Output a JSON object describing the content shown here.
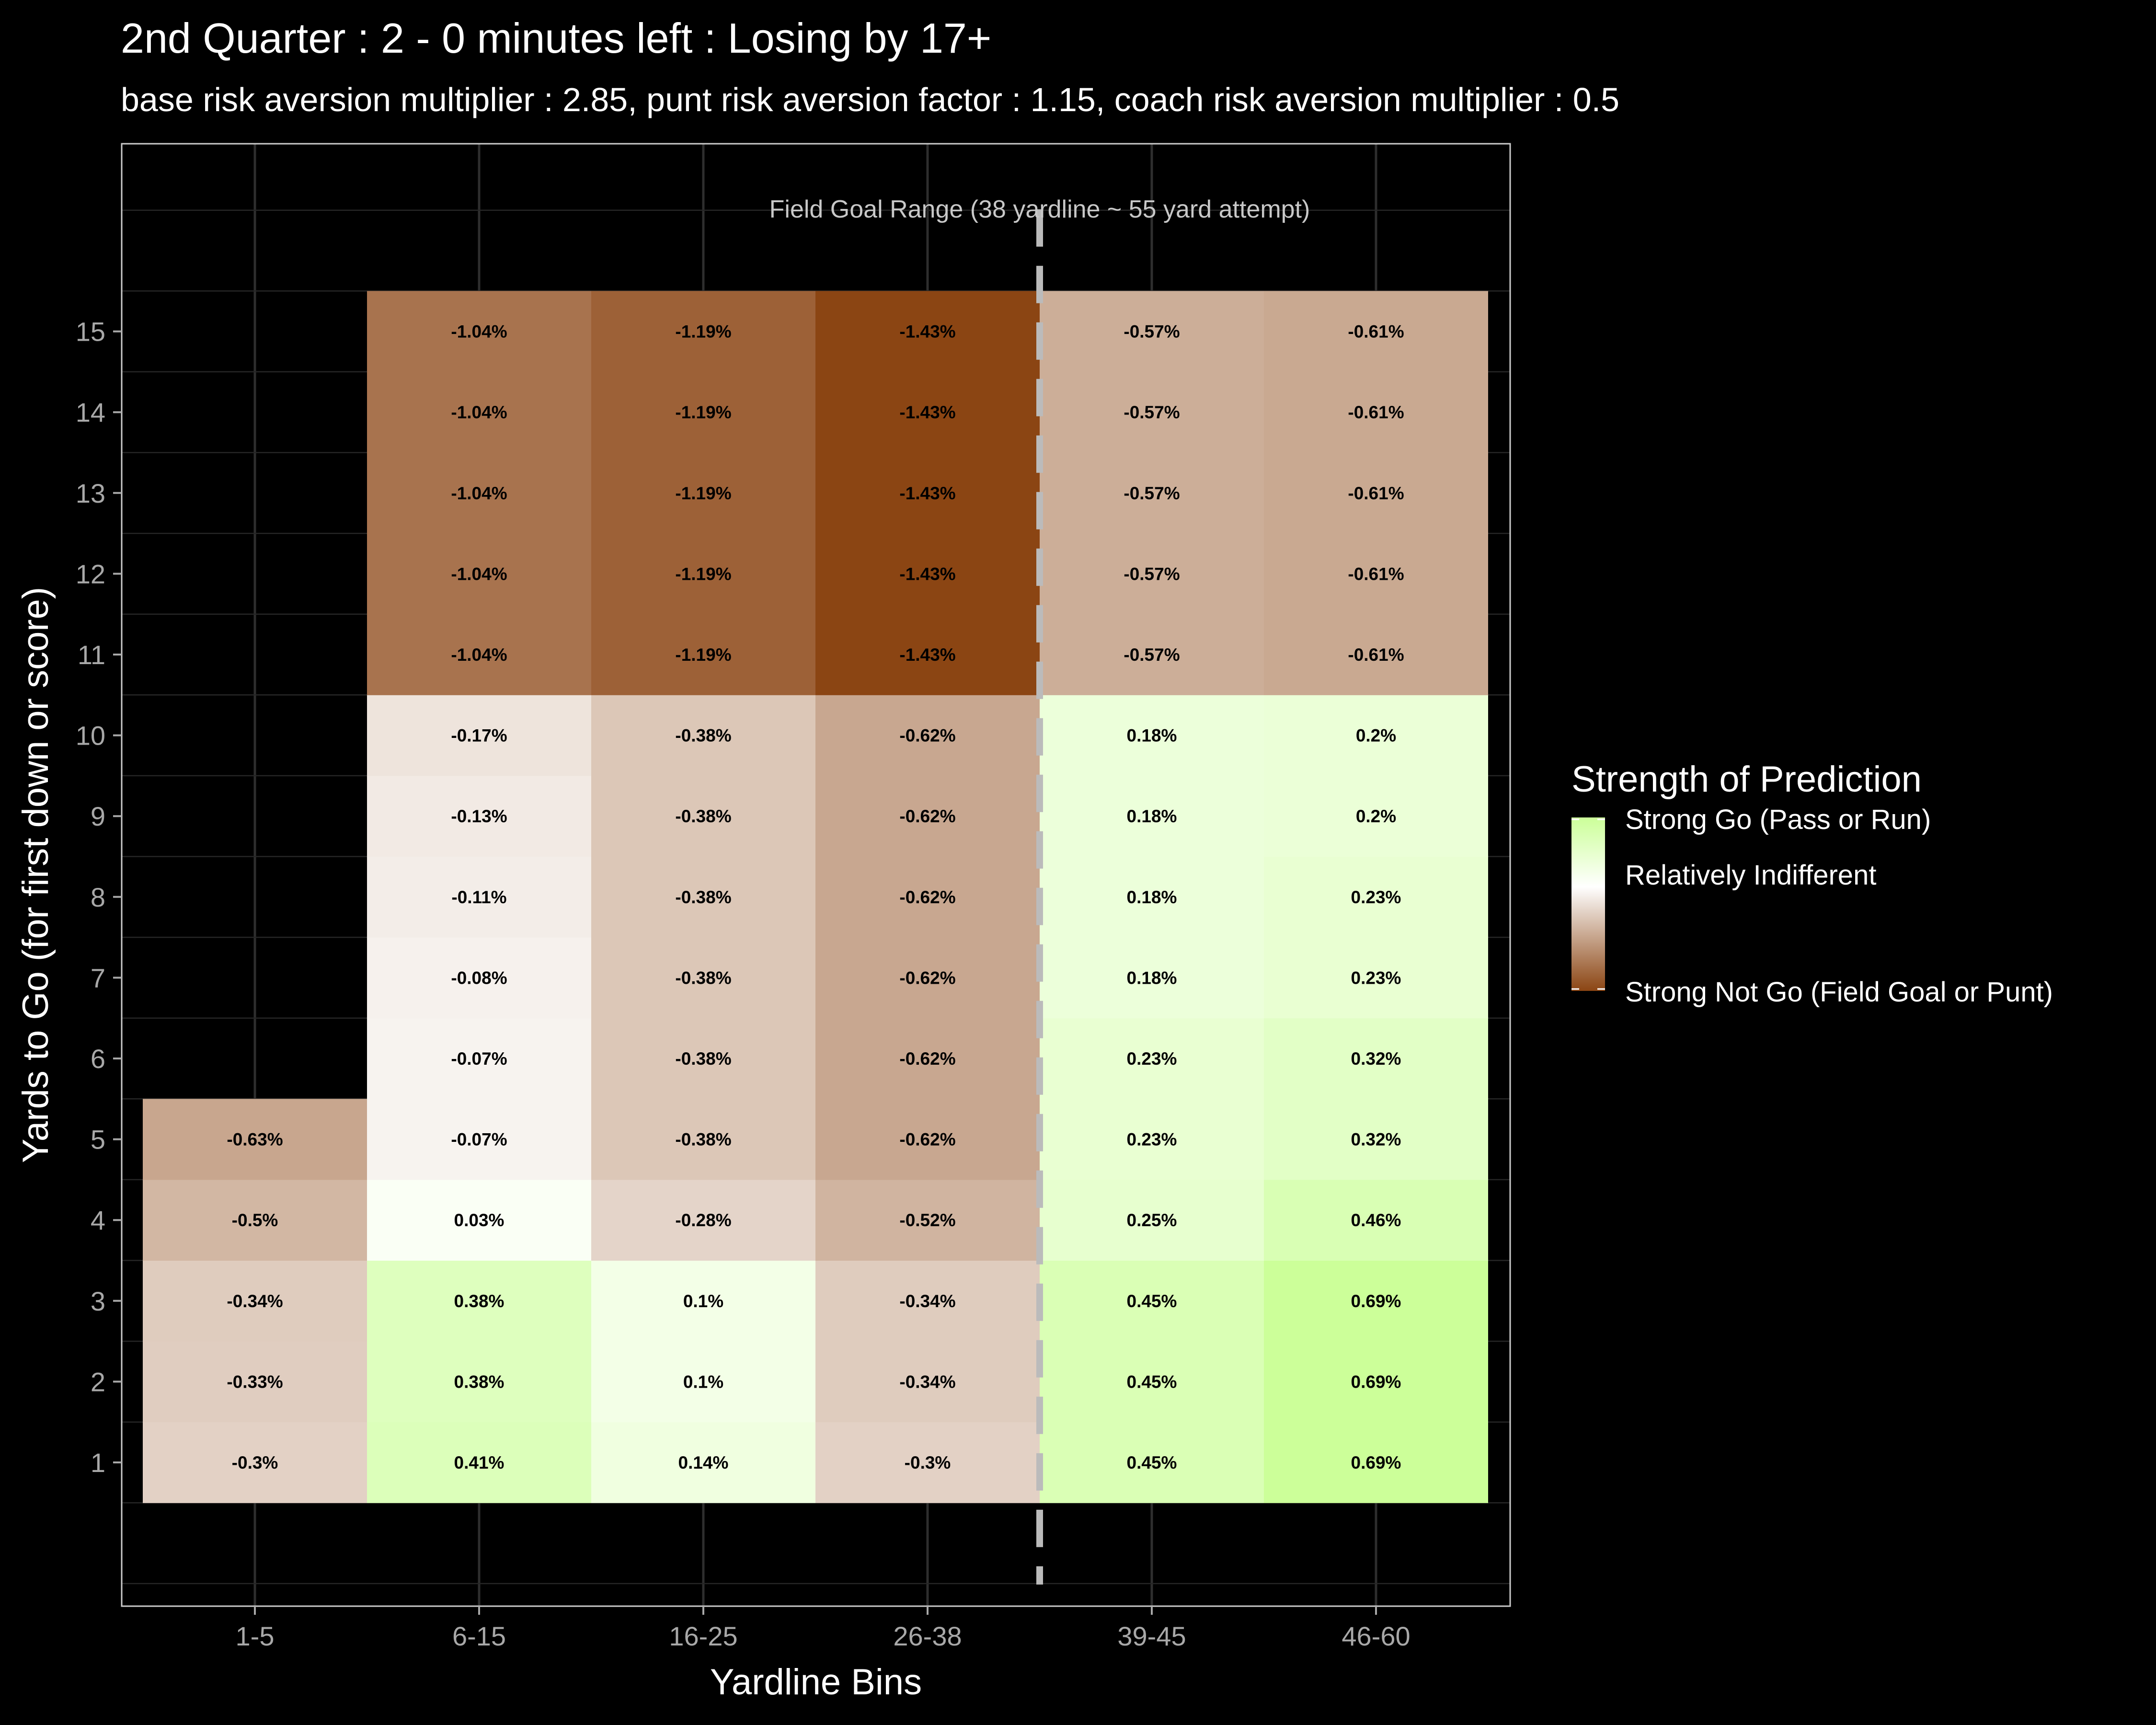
{
  "title": "2nd Quarter : 2 - 0 minutes left : Losing by 17+",
  "subtitle": "base risk aversion multiplier : 2.85, punt risk aversion factor : 1.15, coach risk aversion multiplier : 0.5",
  "chart_data": {
    "type": "heatmap",
    "xlabel": "Yardline Bins",
    "ylabel": "Yards to Go (for first down or score)",
    "x_categories": [
      "1-5",
      "6-15",
      "16-25",
      "26-38",
      "39-45",
      "46-60"
    ],
    "y_categories": [
      1,
      2,
      3,
      4,
      5,
      6,
      7,
      8,
      9,
      10,
      11,
      12,
      13,
      14,
      15
    ],
    "annotation": {
      "text": "Field Goal Range (38 yardline ~ 55 yard attempt)",
      "between": [
        "26-38",
        "39-45"
      ]
    },
    "legend": {
      "title": "Strength of Prediction",
      "labels": [
        "Strong Go (Pass or Run)",
        "Relatively Indifferent",
        "Strong Not Go (Field Goal or Punt)"
      ],
      "placement": "right"
    },
    "colors": {
      "background": "#000000",
      "go": "#ccff99",
      "neutral": "#ffffff",
      "not_go": "#8b4513",
      "range_line": "#bbbbbb"
    },
    "cells": [
      {
        "x": "1-5",
        "y": 1,
        "value": -0.3,
        "label": "-0.3%"
      },
      {
        "x": "1-5",
        "y": 2,
        "value": -0.33,
        "label": "-0.33%"
      },
      {
        "x": "1-5",
        "y": 3,
        "value": -0.34,
        "label": "-0.34%"
      },
      {
        "x": "1-5",
        "y": 4,
        "value": -0.5,
        "label": "-0.5%"
      },
      {
        "x": "1-5",
        "y": 5,
        "value": -0.63,
        "label": "-0.63%"
      },
      {
        "x": "6-15",
        "y": 1,
        "value": 0.41,
        "label": "0.41%"
      },
      {
        "x": "6-15",
        "y": 2,
        "value": 0.38,
        "label": "0.38%"
      },
      {
        "x": "6-15",
        "y": 3,
        "value": 0.38,
        "label": "0.38%"
      },
      {
        "x": "6-15",
        "y": 4,
        "value": 0.03,
        "label": "0.03%"
      },
      {
        "x": "6-15",
        "y": 5,
        "value": -0.07,
        "label": "-0.07%"
      },
      {
        "x": "6-15",
        "y": 6,
        "value": -0.07,
        "label": "-0.07%"
      },
      {
        "x": "6-15",
        "y": 7,
        "value": -0.08,
        "label": "-0.08%"
      },
      {
        "x": "6-15",
        "y": 8,
        "value": -0.11,
        "label": "-0.11%"
      },
      {
        "x": "6-15",
        "y": 9,
        "value": -0.13,
        "label": "-0.13%"
      },
      {
        "x": "6-15",
        "y": 10,
        "value": -0.17,
        "label": "-0.17%"
      },
      {
        "x": "6-15",
        "y": 11,
        "value": -1.04,
        "label": "-1.04%"
      },
      {
        "x": "6-15",
        "y": 12,
        "value": -1.04,
        "label": "-1.04%"
      },
      {
        "x": "6-15",
        "y": 13,
        "value": -1.04,
        "label": "-1.04%"
      },
      {
        "x": "6-15",
        "y": 14,
        "value": -1.04,
        "label": "-1.04%"
      },
      {
        "x": "6-15",
        "y": 15,
        "value": -1.04,
        "label": "-1.04%"
      },
      {
        "x": "16-25",
        "y": 1,
        "value": 0.14,
        "label": "0.14%"
      },
      {
        "x": "16-25",
        "y": 2,
        "value": 0.1,
        "label": "0.1%"
      },
      {
        "x": "16-25",
        "y": 3,
        "value": 0.1,
        "label": "0.1%"
      },
      {
        "x": "16-25",
        "y": 4,
        "value": -0.28,
        "label": "-0.28%"
      },
      {
        "x": "16-25",
        "y": 5,
        "value": -0.38,
        "label": "-0.38%"
      },
      {
        "x": "16-25",
        "y": 6,
        "value": -0.38,
        "label": "-0.38%"
      },
      {
        "x": "16-25",
        "y": 7,
        "value": -0.38,
        "label": "-0.38%"
      },
      {
        "x": "16-25",
        "y": 8,
        "value": -0.38,
        "label": "-0.38%"
      },
      {
        "x": "16-25",
        "y": 9,
        "value": -0.38,
        "label": "-0.38%"
      },
      {
        "x": "16-25",
        "y": 10,
        "value": -0.38,
        "label": "-0.38%"
      },
      {
        "x": "16-25",
        "y": 11,
        "value": -1.19,
        "label": "-1.19%"
      },
      {
        "x": "16-25",
        "y": 12,
        "value": -1.19,
        "label": "-1.19%"
      },
      {
        "x": "16-25",
        "y": 13,
        "value": -1.19,
        "label": "-1.19%"
      },
      {
        "x": "16-25",
        "y": 14,
        "value": -1.19,
        "label": "-1.19%"
      },
      {
        "x": "16-25",
        "y": 15,
        "value": -1.19,
        "label": "-1.19%"
      },
      {
        "x": "26-38",
        "y": 1,
        "value": -0.3,
        "label": "-0.3%"
      },
      {
        "x": "26-38",
        "y": 2,
        "value": -0.34,
        "label": "-0.34%"
      },
      {
        "x": "26-38",
        "y": 3,
        "value": -0.34,
        "label": "-0.34%"
      },
      {
        "x": "26-38",
        "y": 4,
        "value": -0.52,
        "label": "-0.52%"
      },
      {
        "x": "26-38",
        "y": 5,
        "value": -0.62,
        "label": "-0.62%"
      },
      {
        "x": "26-38",
        "y": 6,
        "value": -0.62,
        "label": "-0.62%"
      },
      {
        "x": "26-38",
        "y": 7,
        "value": -0.62,
        "label": "-0.62%"
      },
      {
        "x": "26-38",
        "y": 8,
        "value": -0.62,
        "label": "-0.62%"
      },
      {
        "x": "26-38",
        "y": 9,
        "value": -0.62,
        "label": "-0.62%"
      },
      {
        "x": "26-38",
        "y": 10,
        "value": -0.62,
        "label": "-0.62%"
      },
      {
        "x": "26-38",
        "y": 11,
        "value": -1.43,
        "label": "-1.43%"
      },
      {
        "x": "26-38",
        "y": 12,
        "value": -1.43,
        "label": "-1.43%"
      },
      {
        "x": "26-38",
        "y": 13,
        "value": -1.43,
        "label": "-1.43%"
      },
      {
        "x": "26-38",
        "y": 14,
        "value": -1.43,
        "label": "-1.43%"
      },
      {
        "x": "26-38",
        "y": 15,
        "value": -1.43,
        "label": "-1.43%"
      },
      {
        "x": "39-45",
        "y": 1,
        "value": 0.45,
        "label": "0.45%"
      },
      {
        "x": "39-45",
        "y": 2,
        "value": 0.45,
        "label": "0.45%"
      },
      {
        "x": "39-45",
        "y": 3,
        "value": 0.45,
        "label": "0.45%"
      },
      {
        "x": "39-45",
        "y": 4,
        "value": 0.25,
        "label": "0.25%"
      },
      {
        "x": "39-45",
        "y": 5,
        "value": 0.23,
        "label": "0.23%"
      },
      {
        "x": "39-45",
        "y": 6,
        "value": 0.23,
        "label": "0.23%"
      },
      {
        "x": "39-45",
        "y": 7,
        "value": 0.18,
        "label": "0.18%"
      },
      {
        "x": "39-45",
        "y": 8,
        "value": 0.18,
        "label": "0.18%"
      },
      {
        "x": "39-45",
        "y": 9,
        "value": 0.18,
        "label": "0.18%"
      },
      {
        "x": "39-45",
        "y": 10,
        "value": 0.18,
        "label": "0.18%"
      },
      {
        "x": "39-45",
        "y": 11,
        "value": -0.57,
        "label": "-0.57%"
      },
      {
        "x": "39-45",
        "y": 12,
        "value": -0.57,
        "label": "-0.57%"
      },
      {
        "x": "39-45",
        "y": 13,
        "value": -0.57,
        "label": "-0.57%"
      },
      {
        "x": "39-45",
        "y": 14,
        "value": -0.57,
        "label": "-0.57%"
      },
      {
        "x": "39-45",
        "y": 15,
        "value": -0.57,
        "label": "-0.57%"
      },
      {
        "x": "46-60",
        "y": 1,
        "value": 0.69,
        "label": "0.69%"
      },
      {
        "x": "46-60",
        "y": 2,
        "value": 0.69,
        "label": "0.69%"
      },
      {
        "x": "46-60",
        "y": 3,
        "value": 0.69,
        "label": "0.69%"
      },
      {
        "x": "46-60",
        "y": 4,
        "value": 0.46,
        "label": "0.46%"
      },
      {
        "x": "46-60",
        "y": 5,
        "value": 0.32,
        "label": "0.32%"
      },
      {
        "x": "46-60",
        "y": 6,
        "value": 0.32,
        "label": "0.32%"
      },
      {
        "x": "46-60",
        "y": 7,
        "value": 0.23,
        "label": "0.23%"
      },
      {
        "x": "46-60",
        "y": 8,
        "value": 0.23,
        "label": "0.23%"
      },
      {
        "x": "46-60",
        "y": 9,
        "value": 0.2,
        "label": "0.2%"
      },
      {
        "x": "46-60",
        "y": 10,
        "value": 0.2,
        "label": "0.2%"
      },
      {
        "x": "46-60",
        "y": 11,
        "value": -0.61,
        "label": "-0.61%"
      },
      {
        "x": "46-60",
        "y": 12,
        "value": -0.61,
        "label": "-0.61%"
      },
      {
        "x": "46-60",
        "y": 13,
        "value": -0.61,
        "label": "-0.61%"
      },
      {
        "x": "46-60",
        "y": 14,
        "value": -0.61,
        "label": "-0.61%"
      },
      {
        "x": "46-60",
        "y": 15,
        "value": -0.61,
        "label": "-0.61%"
      }
    ]
  }
}
